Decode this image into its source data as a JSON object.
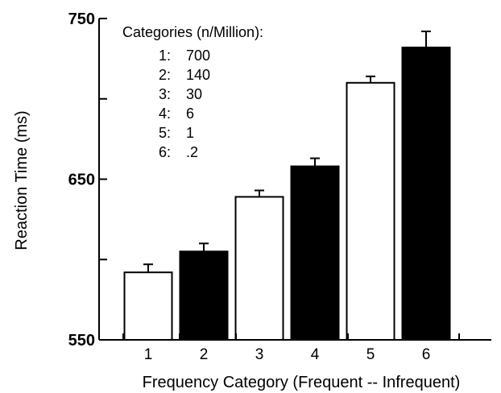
{
  "chart_data": {
    "type": "bar",
    "categories": [
      "1",
      "2",
      "3",
      "4",
      "5",
      "6"
    ],
    "values": [
      592,
      605,
      639,
      658,
      710,
      732
    ],
    "errors": [
      5,
      5,
      4,
      5,
      4,
      10
    ],
    "bar_colors": [
      "#ffffff",
      "#000000",
      "#ffffff",
      "#000000",
      "#ffffff",
      "#000000"
    ],
    "xlabel": "Frequency Category (Frequent -- Infrequent)",
    "ylabel": "Reaction Time (ms)",
    "ylim": [
      550,
      750
    ],
    "yticks": [
      550,
      600,
      650,
      700,
      750
    ],
    "ytick_labels": [
      "550",
      "",
      "650",
      "",
      "750"
    ],
    "grid": false,
    "legend": {
      "title": "Categories (n/Million):",
      "placement": "top-left",
      "entries": [
        {
          "key": "1:",
          "value": "700"
        },
        {
          "key": "2:",
          "value": "140"
        },
        {
          "key": "3:",
          "value": "30"
        },
        {
          "key": "4:",
          "value": "6"
        },
        {
          "key": "5:",
          "value": "1"
        },
        {
          "key": "6:",
          "value": ".2"
        }
      ]
    }
  }
}
